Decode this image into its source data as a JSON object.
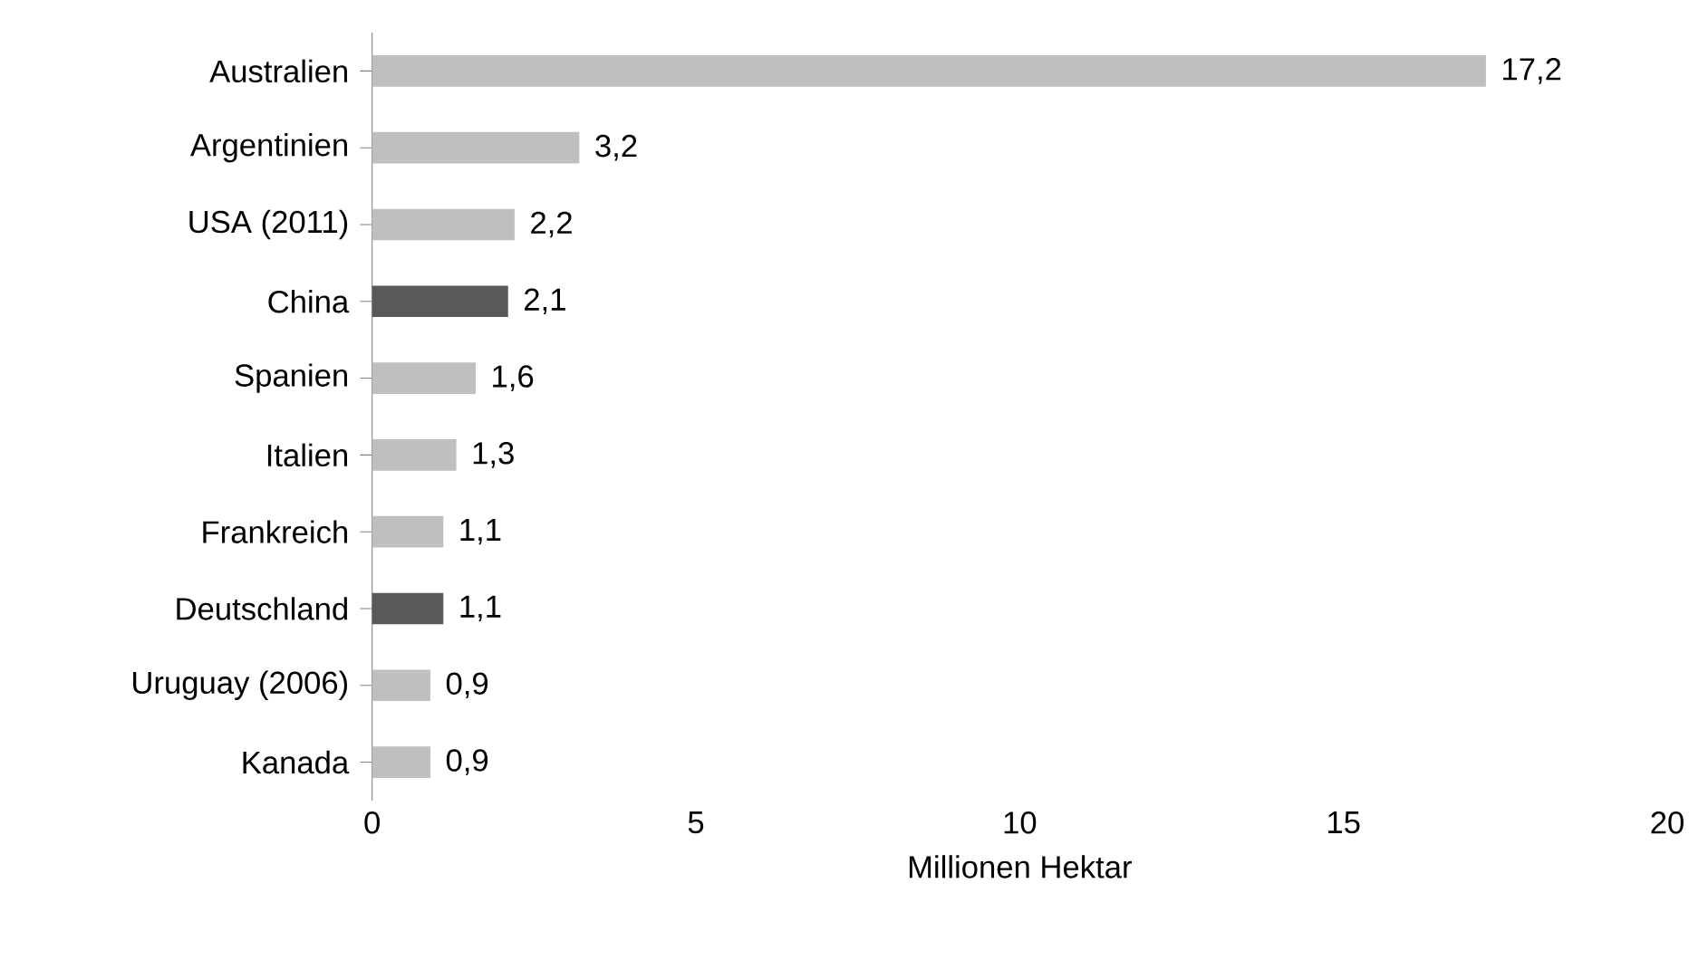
{
  "chart_data": {
    "type": "bar",
    "orientation": "horizontal",
    "xlabel": "Millionen Hektar",
    "categories": [
      "Australien",
      "Argentinien",
      "USA (2011)",
      "China",
      "Spanien",
      "Italien",
      "Frankreich",
      "Deutschland",
      "Uruguay (2006)",
      "Kanada"
    ],
    "values": [
      17.2,
      3.2,
      2.2,
      2.1,
      1.6,
      1.3,
      1.1,
      1.1,
      0.9,
      0.9
    ],
    "value_labels": [
      "17,2",
      "3,2",
      "2,2",
      "2,1",
      "1,6",
      "1,3",
      "1,1",
      "1,1",
      "0,9",
      "0,9"
    ],
    "colors": [
      "#bfbfbf",
      "#bfbfbf",
      "#bfbfbf",
      "#595959",
      "#bfbfbf",
      "#bfbfbf",
      "#bfbfbf",
      "#595959",
      "#bfbfbf",
      "#bfbfbf"
    ],
    "xlim": [
      0,
      20
    ],
    "xticks": [
      0,
      5,
      10,
      15,
      20
    ],
    "grid": false
  }
}
